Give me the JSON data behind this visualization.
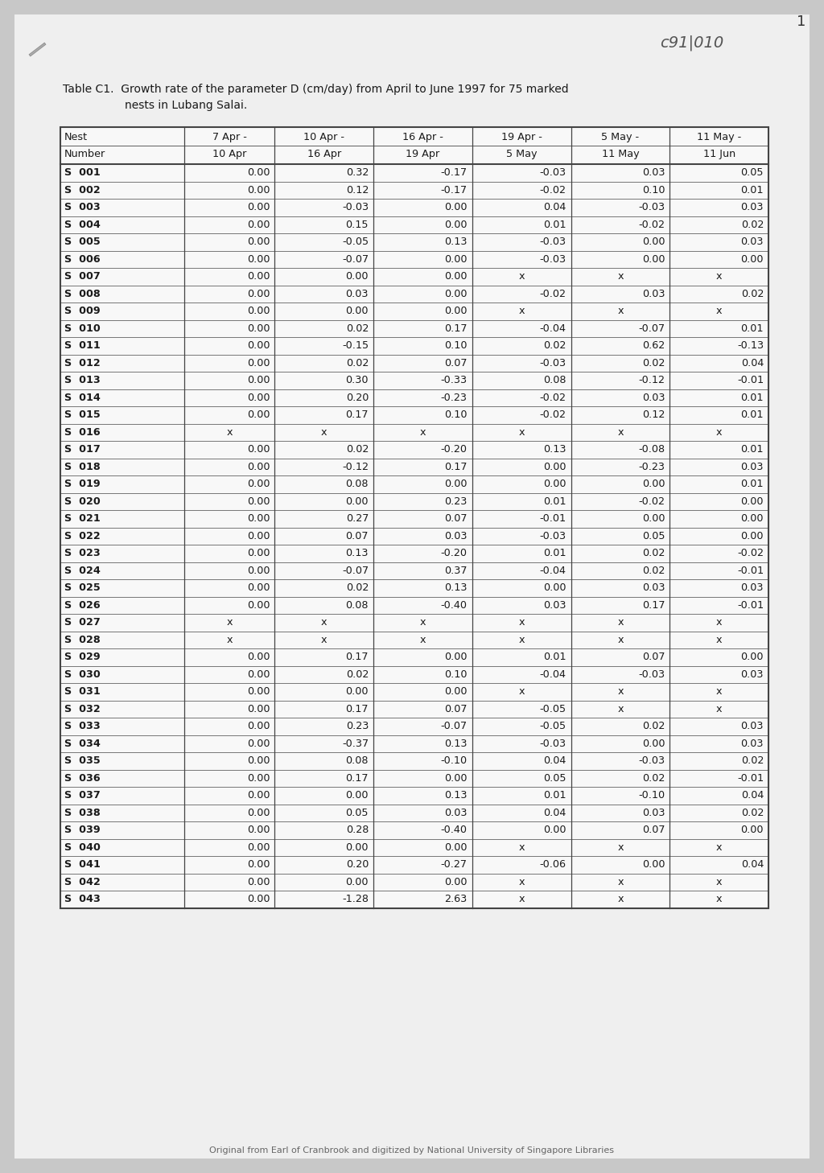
{
  "title_line1": "Table C1.  Growth rate of the parameter D (cm/day) from April to June 1997 for 75 marked",
  "title_line2": "nests in Lubang Salai.",
  "watermark": "c91|010",
  "footer": "Original from Earl of Cranbrook and digitized by National University of Singapore Libraries",
  "col_headers": [
    [
      "Nest",
      "Number"
    ],
    [
      "7 Apr -",
      "10 Apr"
    ],
    [
      "10 Apr -",
      "16 Apr"
    ],
    [
      "16 Apr -",
      "19 Apr"
    ],
    [
      "19 Apr -",
      "5 May"
    ],
    [
      "5 May -",
      "11 May"
    ],
    [
      "11 May -",
      "11 Jun"
    ]
  ],
  "rows": [
    [
      "S  001",
      "0.00",
      "0.32",
      "-0.17",
      "-0.03",
      "0.03",
      "0.05"
    ],
    [
      "S  002",
      "0.00",
      "0.12",
      "-0.17",
      "-0.02",
      "0.10",
      "0.01"
    ],
    [
      "S  003",
      "0.00",
      "-0.03",
      "0.00",
      "0.04",
      "-0.03",
      "0.03"
    ],
    [
      "S  004",
      "0.00",
      "0.15",
      "0.00",
      "0.01",
      "-0.02",
      "0.02"
    ],
    [
      "S  005",
      "0.00",
      "-0.05",
      "0.13",
      "-0.03",
      "0.00",
      "0.03"
    ],
    [
      "S  006",
      "0.00",
      "-0.07",
      "0.00",
      "-0.03",
      "0.00",
      "0.00"
    ],
    [
      "S  007",
      "0.00",
      "0.00",
      "0.00",
      "x",
      "x",
      "x"
    ],
    [
      "S  008",
      "0.00",
      "0.03",
      "0.00",
      "-0.02",
      "0.03",
      "0.02"
    ],
    [
      "S  009",
      "0.00",
      "0.00",
      "0.00",
      "x",
      "x",
      "x"
    ],
    [
      "S  010",
      "0.00",
      "0.02",
      "0.17",
      "-0.04",
      "-0.07",
      "0.01"
    ],
    [
      "S  011",
      "0.00",
      "-0.15",
      "0.10",
      "0.02",
      "0.62",
      "-0.13"
    ],
    [
      "S  012",
      "0.00",
      "0.02",
      "0.07",
      "-0.03",
      "0.02",
      "0.04"
    ],
    [
      "S  013",
      "0.00",
      "0.30",
      "-0.33",
      "0.08",
      "-0.12",
      "-0.01"
    ],
    [
      "S  014",
      "0.00",
      "0.20",
      "-0.23",
      "-0.02",
      "0.03",
      "0.01"
    ],
    [
      "S  015",
      "0.00",
      "0.17",
      "0.10",
      "-0.02",
      "0.12",
      "0.01"
    ],
    [
      "S  016",
      "x",
      "x",
      "x",
      "x",
      "x",
      "x"
    ],
    [
      "S  017",
      "0.00",
      "0.02",
      "-0.20",
      "0.13",
      "-0.08",
      "0.01"
    ],
    [
      "S  018",
      "0.00",
      "-0.12",
      "0.17",
      "0.00",
      "-0.23",
      "0.03"
    ],
    [
      "S  019",
      "0.00",
      "0.08",
      "0.00",
      "0.00",
      "0.00",
      "0.01"
    ],
    [
      "S  020",
      "0.00",
      "0.00",
      "0.23",
      "0.01",
      "-0.02",
      "0.00"
    ],
    [
      "S  021",
      "0.00",
      "0.27",
      "0.07",
      "-0.01",
      "0.00",
      "0.00"
    ],
    [
      "S  022",
      "0.00",
      "0.07",
      "0.03",
      "-0.03",
      "0.05",
      "0.00"
    ],
    [
      "S  023",
      "0.00",
      "0.13",
      "-0.20",
      "0.01",
      "0.02",
      "-0.02"
    ],
    [
      "S  024",
      "0.00",
      "-0.07",
      "0.37",
      "-0.04",
      "0.02",
      "-0.01"
    ],
    [
      "S  025",
      "0.00",
      "0.02",
      "0.13",
      "0.00",
      "0.03",
      "0.03"
    ],
    [
      "S  026",
      "0.00",
      "0.08",
      "-0.40",
      "0.03",
      "0.17",
      "-0.01"
    ],
    [
      "S  027",
      "x",
      "x",
      "x",
      "x",
      "x",
      "x"
    ],
    [
      "S  028",
      "x",
      "x",
      "x",
      "x",
      "x",
      "x"
    ],
    [
      "S  029",
      "0.00",
      "0.17",
      "0.00",
      "0.01",
      "0.07",
      "0.00"
    ],
    [
      "S  030",
      "0.00",
      "0.02",
      "0.10",
      "-0.04",
      "-0.03",
      "0.03"
    ],
    [
      "S  031",
      "0.00",
      "0.00",
      "0.00",
      "x",
      "x",
      "x"
    ],
    [
      "S  032",
      "0.00",
      "0.17",
      "0.07",
      "-0.05",
      "x",
      "x"
    ],
    [
      "S  033",
      "0.00",
      "0.23",
      "-0.07",
      "-0.05",
      "0.02",
      "0.03"
    ],
    [
      "S  034",
      "0.00",
      "-0.37",
      "0.13",
      "-0.03",
      "0.00",
      "0.03"
    ],
    [
      "S  035",
      "0.00",
      "0.08",
      "-0.10",
      "0.04",
      "-0.03",
      "0.02"
    ],
    [
      "S  036",
      "0.00",
      "0.17",
      "0.00",
      "0.05",
      "0.02",
      "-0.01"
    ],
    [
      "S  037",
      "0.00",
      "0.00",
      "0.13",
      "0.01",
      "-0.10",
      "0.04"
    ],
    [
      "S  038",
      "0.00",
      "0.05",
      "0.03",
      "0.04",
      "0.03",
      "0.02"
    ],
    [
      "S  039",
      "0.00",
      "0.28",
      "-0.40",
      "0.00",
      "0.07",
      "0.00"
    ],
    [
      "S  040",
      "0.00",
      "0.00",
      "0.00",
      "x",
      "x",
      "x"
    ],
    [
      "S  041",
      "0.00",
      "0.20",
      "-0.27",
      "-0.06",
      "0.00",
      "0.04"
    ],
    [
      "S  042",
      "0.00",
      "0.00",
      "0.00",
      "x",
      "x",
      "x"
    ],
    [
      "S  043",
      "0.00",
      "-1.28",
      "2.63",
      "x",
      "x",
      "x"
    ]
  ],
  "page_bg": "#c8c8c8",
  "paper_bg": "#efefef",
  "text_color": "#1a1a1a",
  "border_color": "#444444",
  "footer_color": "#666666"
}
